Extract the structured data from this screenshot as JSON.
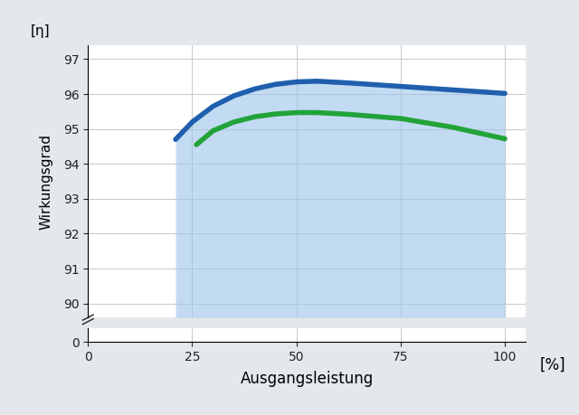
{
  "chart_data": {
    "type": "line",
    "y_label": "Wirkungsgrad",
    "y_unit": "[η]",
    "x_label": "Ausgangsleistung",
    "x_unit": "[%]",
    "xlim": [
      0,
      105
    ],
    "xticks": [
      0,
      25,
      50,
      75,
      100
    ],
    "ylim": [
      0,
      97.4
    ],
    "yticks": [
      0,
      90,
      91,
      92,
      93,
      94,
      95,
      96,
      97
    ],
    "grid": true,
    "series": [
      {
        "color": "#1f5fad",
        "x": [
          21,
          25,
          30,
          35,
          40,
          45,
          50,
          55,
          62.5,
          75,
          87.5,
          100
        ],
        "values": [
          94.7,
          95.2,
          95.65,
          95.95,
          96.15,
          96.28,
          96.35,
          96.37,
          96.32,
          96.22,
          96.12,
          96.02
        ]
      },
      {
        "color": "#22a33a",
        "x": [
          26,
          30,
          35,
          40,
          45,
          50,
          55,
          62.5,
          75,
          87.5,
          100
        ],
        "values": [
          94.55,
          94.95,
          95.2,
          95.35,
          95.43,
          95.47,
          95.47,
          95.42,
          95.3,
          95.05,
          94.72
        ]
      }
    ]
  }
}
